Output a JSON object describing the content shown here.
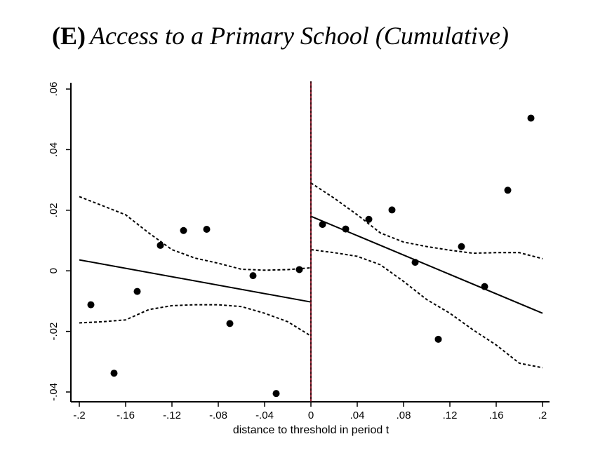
{
  "title": {
    "panel": "(E)",
    "text": "Access to a Primary School (Cumulative)"
  },
  "chart_data": {
    "type": "scatter",
    "title": "(E) Access to a Primary School (Cumulative)",
    "xlabel": "distance to threshold in period t",
    "ylabel": "",
    "xlim": [
      -0.2,
      0.2
    ],
    "ylim": [
      -0.04,
      0.06
    ],
    "x_ticks": [
      {
        "value": -0.2,
        "label": "-.2"
      },
      {
        "value": -0.16,
        "label": "-.16"
      },
      {
        "value": -0.12,
        "label": "-.12"
      },
      {
        "value": -0.08,
        "label": "-.08"
      },
      {
        "value": -0.04,
        "label": "-.04"
      },
      {
        "value": 0,
        "label": "0"
      },
      {
        "value": 0.04,
        "label": ".04"
      },
      {
        "value": 0.08,
        "label": ".08"
      },
      {
        "value": 0.12,
        "label": ".12"
      },
      {
        "value": 0.16,
        "label": ".16"
      },
      {
        "value": 0.2,
        "label": ".2"
      }
    ],
    "y_ticks": [
      {
        "value": -0.04,
        "label": "-.04"
      },
      {
        "value": -0.02,
        "label": "-.02"
      },
      {
        "value": 0,
        "label": "0"
      },
      {
        "value": 0.02,
        "label": ".02"
      },
      {
        "value": 0.04,
        "label": ".04"
      },
      {
        "value": 0.06,
        "label": ".06"
      }
    ],
    "threshold_x": 0,
    "threshold_color": "#8b1a2b",
    "points": [
      {
        "x": -0.19,
        "y": -0.0112
      },
      {
        "x": -0.17,
        "y": -0.0338
      },
      {
        "x": -0.15,
        "y": -0.0068
      },
      {
        "x": -0.13,
        "y": 0.0084
      },
      {
        "x": -0.11,
        "y": 0.0133
      },
      {
        "x": -0.09,
        "y": 0.0137
      },
      {
        "x": -0.07,
        "y": -0.0174
      },
      {
        "x": -0.05,
        "y": -0.0016
      },
      {
        "x": -0.03,
        "y": -0.0405
      },
      {
        "x": -0.01,
        "y": 0.0004
      },
      {
        "x": 0.01,
        "y": 0.0153
      },
      {
        "x": 0.03,
        "y": 0.0138
      },
      {
        "x": 0.05,
        "y": 0.017
      },
      {
        "x": 0.07,
        "y": 0.0201
      },
      {
        "x": 0.09,
        "y": 0.0028
      },
      {
        "x": 0.11,
        "y": -0.0226
      },
      {
        "x": 0.13,
        "y": 0.008
      },
      {
        "x": 0.15,
        "y": -0.0052
      },
      {
        "x": 0.17,
        "y": 0.0266
      },
      {
        "x": 0.19,
        "y": 0.0504
      }
    ],
    "fit_left": [
      [
        -0.2,
        0.0036
      ],
      [
        0,
        -0.0103
      ]
    ],
    "fit_right": [
      [
        0,
        0.018
      ],
      [
        0.2,
        -0.014
      ]
    ],
    "ci_left_upper": [
      [
        -0.2,
        0.0245
      ],
      [
        -0.18,
        0.0215
      ],
      [
        -0.16,
        0.0185
      ],
      [
        -0.14,
        0.0125
      ],
      [
        -0.12,
        0.007
      ],
      [
        -0.1,
        0.0042
      ],
      [
        -0.08,
        0.0025
      ],
      [
        -0.06,
        0.0005
      ],
      [
        -0.04,
        0.0002
      ],
      [
        -0.02,
        0.0004
      ],
      [
        0,
        0.001
      ]
    ],
    "ci_left_lower": [
      [
        -0.2,
        -0.0172
      ],
      [
        -0.18,
        -0.0168
      ],
      [
        -0.16,
        -0.0162
      ],
      [
        -0.14,
        -0.0128
      ],
      [
        -0.12,
        -0.0115
      ],
      [
        -0.1,
        -0.0112
      ],
      [
        -0.08,
        -0.0112
      ],
      [
        -0.06,
        -0.0118
      ],
      [
        -0.04,
        -0.014
      ],
      [
        -0.02,
        -0.0168
      ],
      [
        0,
        -0.0215
      ]
    ],
    "ci_right_upper": [
      [
        0,
        0.029
      ],
      [
        0.02,
        0.024
      ],
      [
        0.04,
        0.0185
      ],
      [
        0.06,
        0.0125
      ],
      [
        0.08,
        0.0095
      ],
      [
        0.1,
        0.008
      ],
      [
        0.12,
        0.0068
      ],
      [
        0.14,
        0.0058
      ],
      [
        0.16,
        0.006
      ],
      [
        0.18,
        0.006
      ],
      [
        0.2,
        0.004
      ]
    ],
    "ci_right_lower": [
      [
        0,
        0.007
      ],
      [
        0.02,
        0.006
      ],
      [
        0.04,
        0.0048
      ],
      [
        0.06,
        0.002
      ],
      [
        0.08,
        -0.0035
      ],
      [
        0.1,
        -0.0095
      ],
      [
        0.12,
        -0.014
      ],
      [
        0.14,
        -0.0195
      ],
      [
        0.16,
        -0.0245
      ],
      [
        0.18,
        -0.0305
      ],
      [
        0.2,
        -0.032
      ]
    ]
  }
}
